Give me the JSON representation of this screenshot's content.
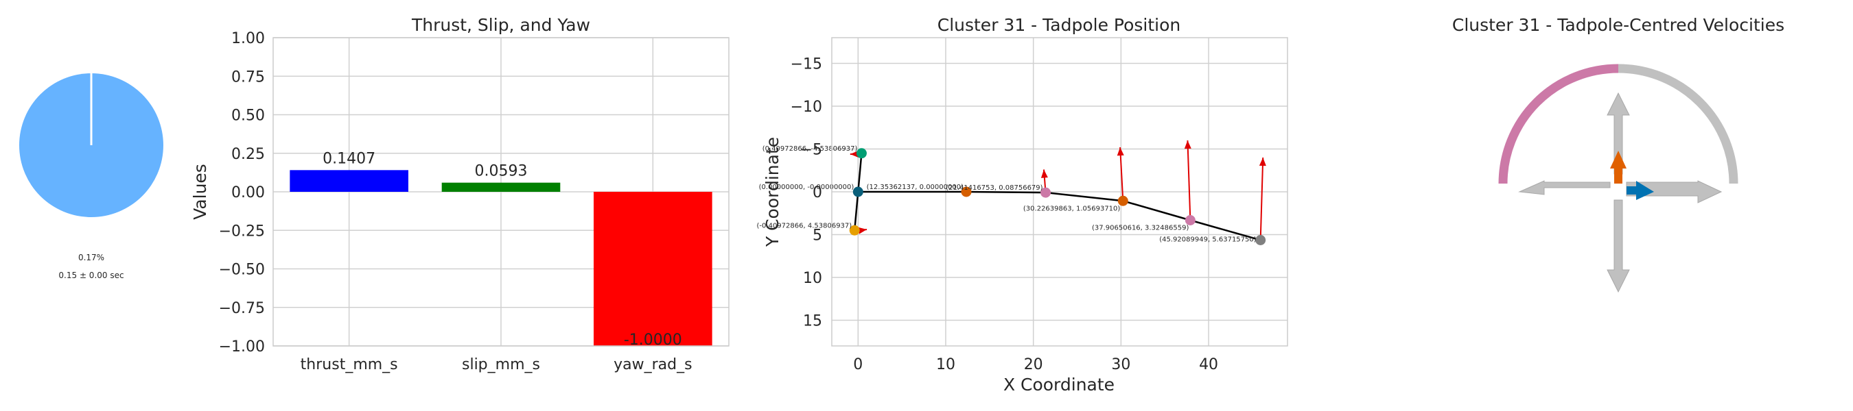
{
  "colors": {
    "pie": "#66b3ff",
    "thrust": "#0000ff",
    "slip": "#008000",
    "yaw": "#ff0000",
    "arc_left": "#cc79a7",
    "arc_right": "#c0c0c0",
    "arrow_gray": "#c0c0c0",
    "arrow_up": "#e06000",
    "arrow_right": "#0072b2",
    "path": "#000000",
    "velocity": "#e00000"
  },
  "pie_panel": {
    "percent_label": "0.17%",
    "time_label": "0.15 ± 0.00 sec",
    "fraction": 0.0017
  },
  "chart_data": [
    {
      "type": "bar",
      "title": "Thrust, Slip, and Yaw",
      "categories": [
        "thrust_mm_s",
        "slip_mm_s",
        "yaw_rad_s"
      ],
      "values": [
        0.1407,
        0.0593,
        -1.0
      ],
      "value_labels": [
        "0.1407",
        "0.0593",
        "-1.0000"
      ],
      "ylabel": "Values",
      "ylim": [
        -1.0,
        1.0
      ],
      "yticks": [
        1.0,
        0.75,
        0.5,
        0.25,
        0.0,
        -0.25,
        -0.5,
        -0.75,
        -1.0
      ],
      "ytick_labels": [
        "1.00",
        "0.75",
        "0.50",
        "0.25",
        "0.00",
        "−0.25",
        "−0.50",
        "−0.75",
        "−1.00"
      ],
      "grid": true
    },
    {
      "type": "scatter",
      "title": "Cluster 31 - Tadpole Position",
      "xlabel": "X Coordinate",
      "ylabel": "Y Coordinate",
      "xlim": [
        -3,
        49
      ],
      "ylim": [
        18,
        -18
      ],
      "xticks": [
        0,
        10,
        20,
        30,
        40
      ],
      "xtick_labels": [
        "0",
        "10",
        "20",
        "30",
        "40"
      ],
      "yticks": [
        -15,
        -10,
        -5,
        0,
        5,
        10,
        15
      ],
      "ytick_labels": [
        "−15",
        "−10",
        "−5",
        "0",
        "5",
        "10",
        "15"
      ],
      "grid": true,
      "points": [
        {
          "x": 0.4,
          "y": -4.5,
          "label": "(0.40972866, -4.53806937)",
          "color": "#009e73"
        },
        {
          "x": 0.0,
          "y": 0.0,
          "label": "(0.00000000, -0.00000000)",
          "color": "#0a5f7a"
        },
        {
          "x": -0.4,
          "y": 4.5,
          "label": "(-0.40972866, 4.53806937)",
          "color": "#e69f00"
        },
        {
          "x": 12.35,
          "y": 0.0,
          "label": "(12.35362137, 0.00000000)",
          "color": "#d55e00"
        },
        {
          "x": 21.4,
          "y": 0.09,
          "label": "(21.41416753, 0.08756679)",
          "color": "#cc79a7"
        },
        {
          "x": 30.23,
          "y": 1.06,
          "label": "(30.22639863, 1.05693710)",
          "color": "#d55e00"
        },
        {
          "x": 37.91,
          "y": 3.32,
          "label": "(37.90650616, 3.32486559)",
          "color": "#cc79a7"
        },
        {
          "x": 45.92,
          "y": 5.64,
          "label": "(45.92089949, 5.63715750)",
          "color": "#808080"
        }
      ],
      "path_order": [
        0,
        1,
        2,
        1,
        3,
        4,
        5,
        6,
        7
      ],
      "velocity_vectors": [
        {
          "x0": 0.5,
          "y0": -4.4,
          "x1": -0.9,
          "y1": -4.4
        },
        {
          "x0": -0.4,
          "y0": 4.6,
          "x1": 1.0,
          "y1": 4.4
        },
        {
          "x0": 21.4,
          "y0": 0.1,
          "x1": 21.2,
          "y1": -2.6
        },
        {
          "x0": 30.23,
          "y0": 1.06,
          "x1": 29.9,
          "y1": -5.2
        },
        {
          "x0": 37.91,
          "y0": 3.32,
          "x1": 37.6,
          "y1": -6.0
        },
        {
          "x0": 45.92,
          "y0": 5.64,
          "x1": 46.2,
          "y1": -4.0
        }
      ]
    }
  ],
  "velocity_panel": {
    "title": "Cluster 31 - Tadpole-Centred Velocities"
  }
}
